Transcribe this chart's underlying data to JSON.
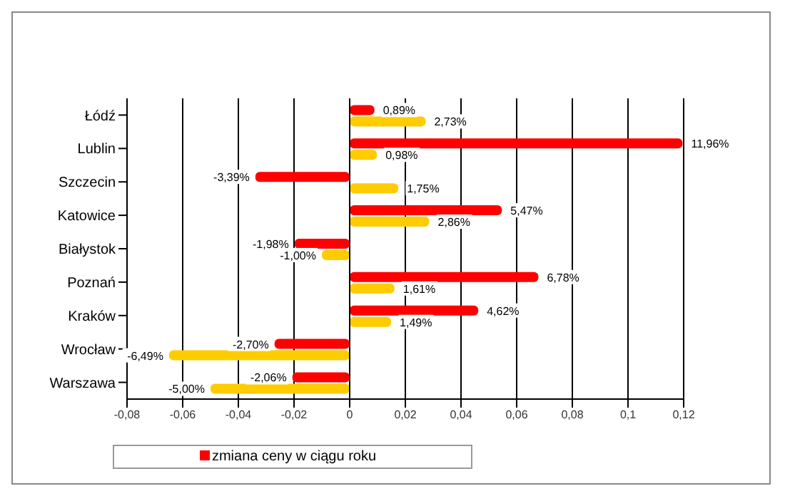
{
  "chart_data": {
    "type": "bar",
    "orientation": "horizontal",
    "categories": [
      "Łódź",
      "Lublin",
      "Szczecin",
      "Katowice",
      "Białystok",
      "Poznań",
      "Kraków",
      "Wrocław",
      "Warszawa"
    ],
    "series": [
      {
        "name": "zmiana ceny w ciągu roku",
        "color": "#ff0000",
        "values": [
          0.0089,
          0.1196,
          -0.0339,
          0.0547,
          -0.0198,
          0.0678,
          0.0462,
          -0.027,
          -0.0206
        ],
        "value_labels": [
          "0,89%",
          "11,96%",
          "-3,39%",
          "5,47%",
          "-1,98%",
          "6,78%",
          "4,62%",
          "-2,70%",
          "-2,06%"
        ]
      },
      {
        "color": "#ffcc00",
        "values": [
          0.0273,
          0.0098,
          0.0175,
          0.0286,
          -0.01,
          0.0161,
          0.0149,
          -0.0649,
          -0.05
        ],
        "value_labels": [
          "2,73%",
          "0,98%",
          "1,75%",
          "2,86%",
          "-1,00%",
          "1,61%",
          "1,49%",
          "-6,49%",
          "-5,00%"
        ]
      }
    ],
    "xlim": [
      -0.08,
      0.12
    ],
    "xticks": [
      {
        "value": -0.08,
        "label": "-0,08"
      },
      {
        "value": -0.06,
        "label": "-0,06"
      },
      {
        "value": -0.04,
        "label": "-0,04"
      },
      {
        "value": -0.02,
        "label": "-0,02"
      },
      0,
      {
        "value": 0.02,
        "label": "0,02"
      },
      {
        "value": 0.04,
        "label": "0,04"
      },
      {
        "value": 0.06,
        "label": "0,06"
      },
      {
        "value": 0.08,
        "label": "0,08"
      },
      {
        "value": 0.1,
        "label": "0,1"
      },
      {
        "value": 0.12,
        "label": "0,12"
      }
    ],
    "grid": "x",
    "legend": "bottom"
  }
}
